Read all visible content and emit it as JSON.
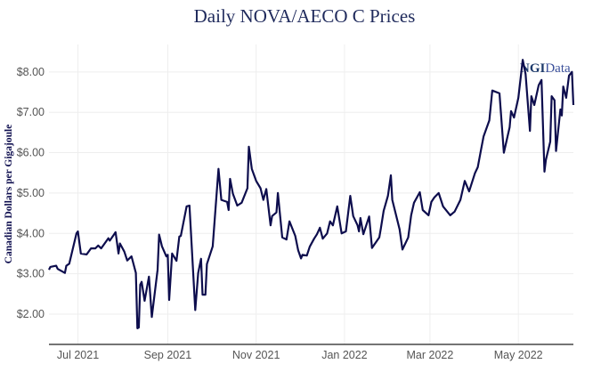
{
  "chart_data": {
    "type": "line",
    "title": "Daily NOVA/AECO C Prices",
    "xlabel": "",
    "ylabel": "Canadian Dollars per Gigajoule",
    "xlim": [
      "2021-06-11",
      "2022-06-08"
    ],
    "ylim": [
      1.25,
      8.68
    ],
    "grid": true,
    "legend": "none",
    "line_color": "#0d0d4d",
    "watermark": "NGIData",
    "x_ticks": [
      {
        "date": "2021-07-01",
        "label": "Jul 2021"
      },
      {
        "date": "2021-09-01",
        "label": "Sep 2021"
      },
      {
        "date": "2021-11-01",
        "label": "Nov 2021"
      },
      {
        "date": "2022-01-01",
        "label": "Jan 2022"
      },
      {
        "date": "2022-03-01",
        "label": "Mar 2022"
      },
      {
        "date": "2022-05-01",
        "label": "May 2022"
      }
    ],
    "y_ticks": [
      {
        "value": 2,
        "label": "$2.00"
      },
      {
        "value": 3,
        "label": "$3.00"
      },
      {
        "value": 4,
        "label": "$4.00"
      },
      {
        "value": 5,
        "label": "$5.00"
      },
      {
        "value": 6,
        "label": "$6.00"
      },
      {
        "value": 7,
        "label": "$7.00"
      },
      {
        "value": 8,
        "label": "$8.00"
      }
    ],
    "series": [
      {
        "points": [
          [
            "2021-06-11",
            3.1
          ],
          [
            "2021-06-12",
            3.17
          ],
          [
            "2021-06-16",
            3.2
          ],
          [
            "2021-06-17",
            3.12
          ],
          [
            "2021-06-22",
            3.02
          ],
          [
            "2021-06-23",
            3.2
          ],
          [
            "2021-06-25",
            3.25
          ],
          [
            "2021-06-30",
            4.0
          ],
          [
            "2021-07-01",
            4.05
          ],
          [
            "2021-07-03",
            3.5
          ],
          [
            "2021-07-07",
            3.48
          ],
          [
            "2021-07-10",
            3.63
          ],
          [
            "2021-07-13",
            3.63
          ],
          [
            "2021-07-15",
            3.7
          ],
          [
            "2021-07-17",
            3.63
          ],
          [
            "2021-07-22",
            3.88
          ],
          [
            "2021-07-23",
            3.82
          ],
          [
            "2021-07-27",
            4.03
          ],
          [
            "2021-07-29",
            3.5
          ],
          [
            "2021-07-30",
            3.75
          ],
          [
            "2021-08-02",
            3.55
          ],
          [
            "2021-08-04",
            3.33
          ],
          [
            "2021-08-07",
            3.43
          ],
          [
            "2021-08-10",
            3.02
          ],
          [
            "2021-08-11",
            1.65
          ],
          [
            "2021-08-12",
            1.67
          ],
          [
            "2021-08-13",
            2.73
          ],
          [
            "2021-08-14",
            2.8
          ],
          [
            "2021-08-16",
            2.33
          ],
          [
            "2021-08-19",
            2.93
          ],
          [
            "2021-08-21",
            1.93
          ],
          [
            "2021-08-25",
            3.1
          ],
          [
            "2021-08-26",
            3.97
          ],
          [
            "2021-08-28",
            3.68
          ],
          [
            "2021-08-31",
            3.43
          ],
          [
            "2021-09-01",
            3.47
          ],
          [
            "2021-09-02",
            2.35
          ],
          [
            "2021-09-04",
            3.5
          ],
          [
            "2021-09-07",
            3.32
          ],
          [
            "2021-09-09",
            3.92
          ],
          [
            "2021-09-10",
            3.94
          ],
          [
            "2021-09-14",
            4.67
          ],
          [
            "2021-09-16",
            4.69
          ],
          [
            "2021-09-20",
            2.1
          ],
          [
            "2021-09-22",
            3.02
          ],
          [
            "2021-09-24",
            3.37
          ],
          [
            "2021-09-25",
            2.48
          ],
          [
            "2021-09-27",
            2.48
          ],
          [
            "2021-09-28",
            3.24
          ],
          [
            "2021-10-02",
            3.68
          ],
          [
            "2021-10-06",
            5.6
          ],
          [
            "2021-10-08",
            4.83
          ],
          [
            "2021-10-12",
            4.78
          ],
          [
            "2021-10-13",
            4.58
          ],
          [
            "2021-10-14",
            5.35
          ],
          [
            "2021-10-16",
            4.98
          ],
          [
            "2021-10-19",
            4.69
          ],
          [
            "2021-10-22",
            4.76
          ],
          [
            "2021-10-26",
            5.12
          ],
          [
            "2021-10-27",
            6.15
          ],
          [
            "2021-10-29",
            5.6
          ],
          [
            "2021-11-01",
            5.3
          ],
          [
            "2021-11-04",
            5.12
          ],
          [
            "2021-11-06",
            4.83
          ],
          [
            "2021-11-08",
            5.1
          ],
          [
            "2021-11-11",
            4.2
          ],
          [
            "2021-11-12",
            4.43
          ],
          [
            "2021-11-15",
            4.52
          ],
          [
            "2021-11-16",
            5.0
          ],
          [
            "2021-11-19",
            3.9
          ],
          [
            "2021-11-22",
            3.85
          ],
          [
            "2021-11-24",
            4.3
          ],
          [
            "2021-11-28",
            3.94
          ],
          [
            "2021-11-30",
            3.58
          ],
          [
            "2021-12-02",
            3.38
          ],
          [
            "2021-12-03",
            3.47
          ],
          [
            "2021-12-06",
            3.45
          ],
          [
            "2021-12-08",
            3.67
          ],
          [
            "2021-12-11",
            3.87
          ],
          [
            "2021-12-13",
            3.98
          ],
          [
            "2021-12-15",
            4.14
          ],
          [
            "2021-12-17",
            3.87
          ],
          [
            "2021-12-20",
            4.0
          ],
          [
            "2021-12-22",
            4.3
          ],
          [
            "2021-12-24",
            4.2
          ],
          [
            "2021-12-27",
            4.67
          ],
          [
            "2021-12-30",
            4.0
          ],
          [
            "2022-01-02",
            4.05
          ],
          [
            "2022-01-05",
            4.93
          ],
          [
            "2022-01-07",
            4.43
          ],
          [
            "2022-01-10",
            4.2
          ],
          [
            "2022-01-11",
            4.05
          ],
          [
            "2022-01-12",
            4.38
          ],
          [
            "2022-01-14",
            3.98
          ],
          [
            "2022-01-18",
            4.42
          ],
          [
            "2022-01-20",
            3.64
          ],
          [
            "2022-01-25",
            3.9
          ],
          [
            "2022-01-26",
            4.1
          ],
          [
            "2022-01-28",
            4.56
          ],
          [
            "2022-01-31",
            4.93
          ],
          [
            "2022-02-02",
            5.44
          ],
          [
            "2022-02-03",
            4.83
          ],
          [
            "2022-02-08",
            4.1
          ],
          [
            "2022-02-10",
            3.6
          ],
          [
            "2022-02-14",
            3.9
          ],
          [
            "2022-02-16",
            4.45
          ],
          [
            "2022-02-18",
            4.76
          ],
          [
            "2022-02-22",
            5.02
          ],
          [
            "2022-02-24",
            4.58
          ],
          [
            "2022-02-28",
            4.45
          ],
          [
            "2022-03-02",
            4.78
          ],
          [
            "2022-03-04",
            4.89
          ],
          [
            "2022-03-07",
            5.0
          ],
          [
            "2022-03-10",
            4.67
          ],
          [
            "2022-03-15",
            4.45
          ],
          [
            "2022-03-18",
            4.54
          ],
          [
            "2022-03-22",
            4.83
          ],
          [
            "2022-03-25",
            5.3
          ],
          [
            "2022-03-28",
            5.04
          ],
          [
            "2022-04-01",
            5.49
          ],
          [
            "2022-04-03",
            5.64
          ],
          [
            "2022-04-05",
            6.03
          ],
          [
            "2022-04-07",
            6.4
          ],
          [
            "2022-04-11",
            6.8
          ],
          [
            "2022-04-13",
            7.54
          ],
          [
            "2022-04-18",
            7.47
          ],
          [
            "2022-04-21",
            6.0
          ],
          [
            "2022-04-25",
            6.63
          ],
          [
            "2022-04-26",
            7.03
          ],
          [
            "2022-04-28",
            6.87
          ],
          [
            "2022-05-01",
            7.36
          ],
          [
            "2022-05-04",
            8.3
          ],
          [
            "2022-05-06",
            7.95
          ],
          [
            "2022-05-09",
            6.54
          ],
          [
            "2022-05-10",
            7.4
          ],
          [
            "2022-05-12",
            7.18
          ],
          [
            "2022-05-15",
            7.67
          ],
          [
            "2022-05-17",
            7.8
          ],
          [
            "2022-05-19",
            5.53
          ],
          [
            "2022-05-20",
            5.82
          ],
          [
            "2022-05-23",
            6.27
          ],
          [
            "2022-05-24",
            7.4
          ],
          [
            "2022-05-26",
            7.3
          ],
          [
            "2022-05-27",
            6.04
          ],
          [
            "2022-05-30",
            7.07
          ],
          [
            "2022-05-31",
            6.92
          ],
          [
            "2022-06-01",
            7.64
          ],
          [
            "2022-06-03",
            7.36
          ],
          [
            "2022-06-05",
            7.91
          ],
          [
            "2022-06-07",
            8.0
          ],
          [
            "2022-06-08",
            7.18
          ]
        ]
      }
    ]
  }
}
